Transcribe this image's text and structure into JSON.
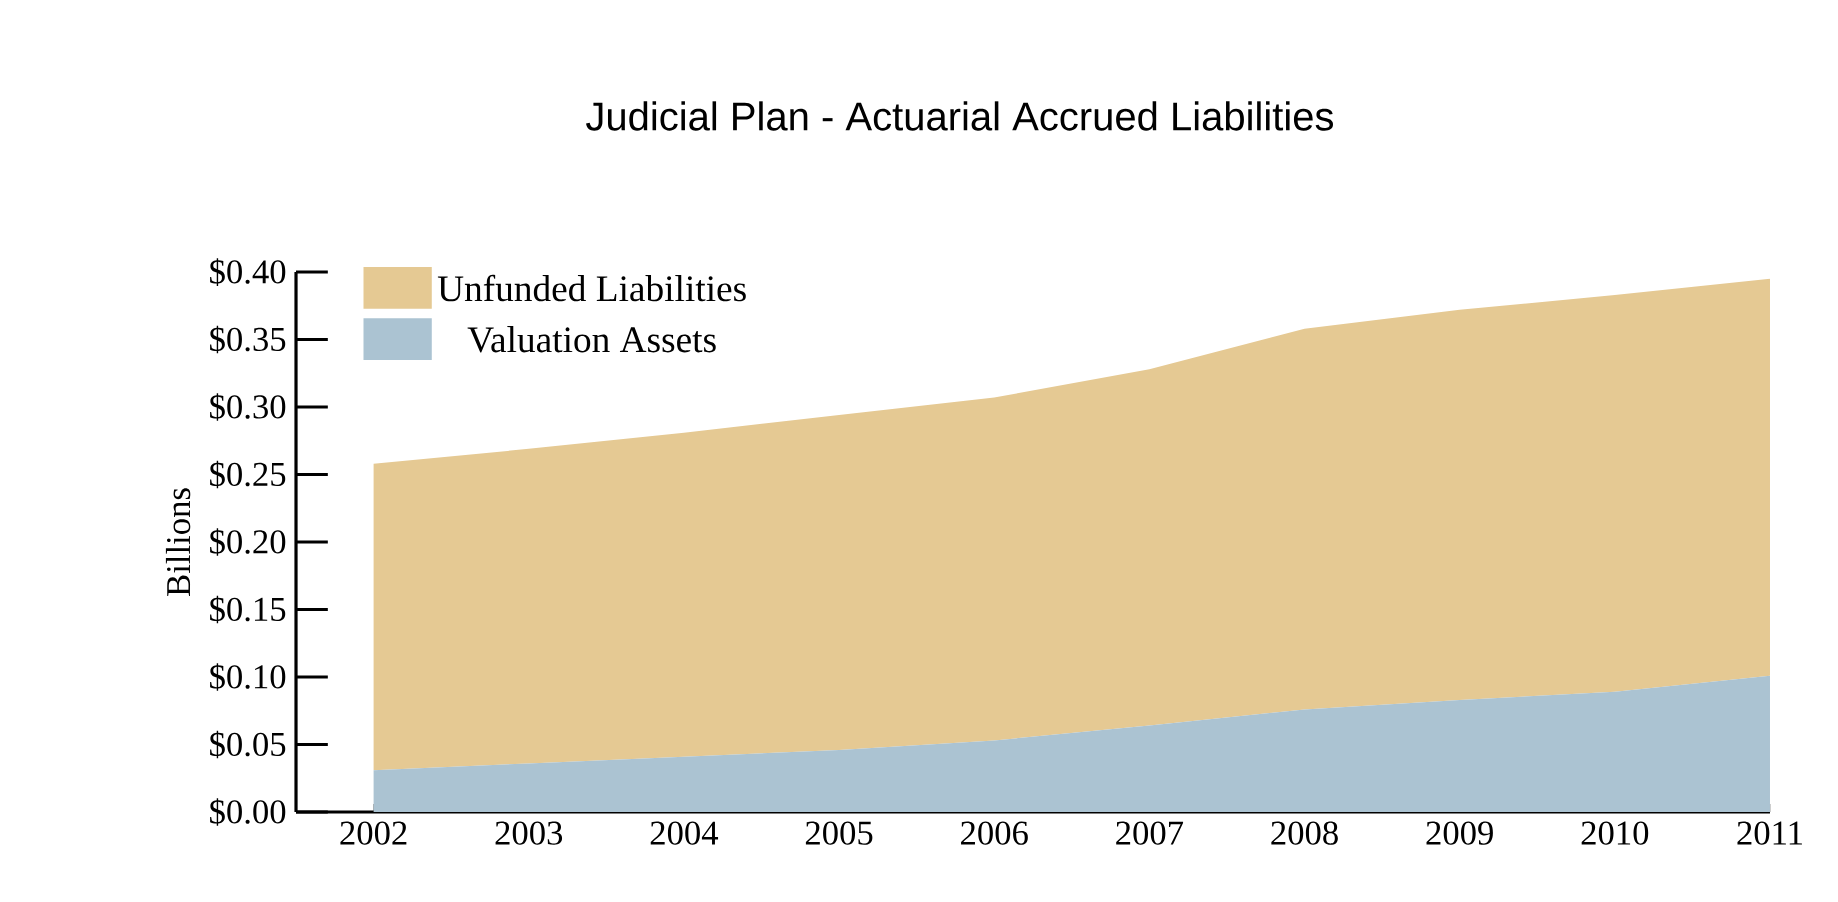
{
  "chart_data": {
    "type": "area",
    "title": "Judicial Plan - Actuarial Accrued Liabilities",
    "ylabel": "Billions",
    "stacked": true,
    "x": [
      2002,
      2003,
      2004,
      2005,
      2006,
      2007,
      2008,
      2009,
      2010,
      2011
    ],
    "series": [
      {
        "name": "Valuation Assets",
        "color": "#abc3d2",
        "values": [
          0.031,
          0.036,
          0.041,
          0.046,
          0.053,
          0.064,
          0.076,
          0.083,
          0.089,
          0.101
        ]
      },
      {
        "name": "Unfunded Liabilities",
        "color": "#e5c993",
        "values": [
          0.227,
          0.233,
          0.24,
          0.248,
          0.254,
          0.264,
          0.282,
          0.289,
          0.294,
          0.294
        ]
      }
    ],
    "xlim": [
      2001.5,
      2011
    ],
    "xticks": [
      2002,
      2003,
      2004,
      2005,
      2006,
      2007,
      2008,
      2009,
      2010,
      2011
    ],
    "ylim": [
      0,
      0.4
    ],
    "yticks": [
      {
        "value": 0,
        "label": "$0.00"
      },
      {
        "value": 0.05,
        "label": "$0.05"
      },
      {
        "value": 0.1,
        "label": "$0.10"
      },
      {
        "value": 0.15,
        "label": "$0.15"
      },
      {
        "value": 0.2,
        "label": "$0.20"
      },
      {
        "value": 0.25,
        "label": "$0.25"
      },
      {
        "value": 0.3,
        "label": "$0.30"
      },
      {
        "value": 0.35,
        "label": "$0.35"
      },
      {
        "value": 0.4,
        "label": "$0.40"
      }
    ],
    "legend": "top left",
    "grid": false
  }
}
